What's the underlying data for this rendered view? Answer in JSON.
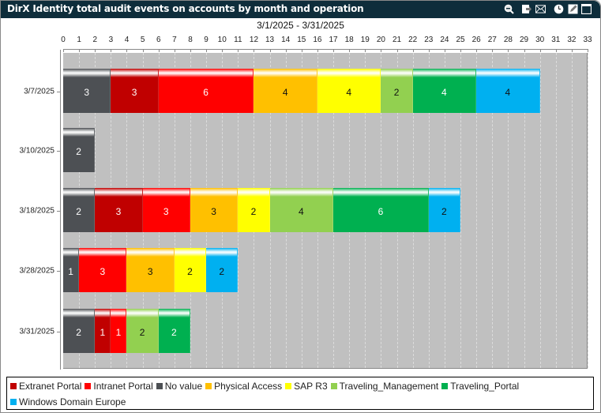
{
  "window": {
    "title": "DirX Identity total audit events on accounts by month and operation",
    "toolbar_icons": [
      "zoom-out-icon",
      "export-icon",
      "email-icon",
      "clock-icon",
      "edit-icon",
      "maximize-icon"
    ]
  },
  "chart_data": {
    "type": "bar",
    "orientation": "horizontal",
    "stacked": true,
    "title": "DirX Identity total audit events on accounts by month and operation",
    "subtitle": "3/1/2025 - 3/31/2025",
    "xlabel": "",
    "ylabel": "",
    "xlim": [
      0,
      33
    ],
    "x_ticks": [
      0,
      1,
      2,
      3,
      4,
      5,
      6,
      7,
      8,
      9,
      10,
      11,
      12,
      13,
      14,
      15,
      16,
      17,
      18,
      19,
      20,
      21,
      22,
      23,
      24,
      25,
      26,
      27,
      28,
      29,
      30,
      31,
      32,
      33
    ],
    "grid": true,
    "legend_position": "bottom",
    "categories": [
      "3/7/2025",
      "3/10/2025",
      "3/18/2025",
      "3/28/2025",
      "3/31/2025"
    ],
    "series": [
      {
        "name": "No value",
        "color": "#4d5054",
        "values": [
          3,
          2,
          2,
          1,
          2
        ]
      },
      {
        "name": "Extranet Portal",
        "color": "#c00000",
        "values": [
          3,
          0,
          3,
          0,
          1
        ]
      },
      {
        "name": "Intranet Portal",
        "color": "#ff0000",
        "values": [
          6,
          0,
          3,
          3,
          1
        ]
      },
      {
        "name": "Physical Access",
        "color": "#ffc000",
        "values": [
          4,
          0,
          3,
          3,
          0
        ]
      },
      {
        "name": "SAP R3",
        "color": "#ffff00",
        "values": [
          4,
          0,
          2,
          2,
          0
        ]
      },
      {
        "name": "Traveling_Management",
        "color": "#92d050",
        "values": [
          2,
          0,
          4,
          0,
          2
        ]
      },
      {
        "name": "Traveling_Portal",
        "color": "#00b050",
        "values": [
          4,
          0,
          6,
          0,
          2
        ]
      },
      {
        "name": "Windows Domain Europe",
        "color": "#00b0f0",
        "values": [
          4,
          0,
          2,
          2,
          0
        ]
      }
    ],
    "rows": [
      {
        "label": "3/7/2025",
        "segments": [
          {
            "series": "No value",
            "value": 3,
            "color": "#4d5054",
            "text_color": "#ffffff"
          },
          {
            "series": "Extranet Portal",
            "value": 3,
            "color": "#c00000",
            "text_color": "#ffffff"
          },
          {
            "series": "Intranet Portal",
            "value": 6,
            "color": "#ff0000",
            "text_color": "#ffffff"
          },
          {
            "series": "Physical Access",
            "value": 4,
            "color": "#ffc000",
            "text_color": "#111111"
          },
          {
            "series": "SAP R3",
            "value": 4,
            "color": "#ffff00",
            "text_color": "#111111"
          },
          {
            "series": "Traveling_Management",
            "value": 2,
            "color": "#92d050",
            "text_color": "#111111"
          },
          {
            "series": "Traveling_Portal",
            "value": 4,
            "color": "#00b050",
            "text_color": "#ffffff"
          },
          {
            "series": "Windows Domain Europe",
            "value": 4,
            "color": "#00b0f0",
            "text_color": "#111111"
          }
        ]
      },
      {
        "label": "3/10/2025",
        "segments": [
          {
            "series": "No value",
            "value": 2,
            "color": "#4d5054",
            "text_color": "#ffffff"
          }
        ]
      },
      {
        "label": "3/18/2025",
        "segments": [
          {
            "series": "No value",
            "value": 2,
            "color": "#4d5054",
            "text_color": "#ffffff"
          },
          {
            "series": "Extranet Portal",
            "value": 3,
            "color": "#c00000",
            "text_color": "#ffffff"
          },
          {
            "series": "Intranet Portal",
            "value": 3,
            "color": "#ff0000",
            "text_color": "#ffffff"
          },
          {
            "series": "Physical Access",
            "value": 3,
            "color": "#ffc000",
            "text_color": "#111111"
          },
          {
            "series": "SAP R3",
            "value": 2,
            "color": "#ffff00",
            "text_color": "#111111"
          },
          {
            "series": "Traveling_Management",
            "value": 4,
            "color": "#92d050",
            "text_color": "#111111"
          },
          {
            "series": "Traveling_Portal",
            "value": 6,
            "color": "#00b050",
            "text_color": "#ffffff"
          },
          {
            "series": "Windows Domain Europe",
            "value": 2,
            "color": "#00b0f0",
            "text_color": "#111111"
          }
        ]
      },
      {
        "label": "3/28/2025",
        "segments": [
          {
            "series": "No value",
            "value": 1,
            "color": "#4d5054",
            "text_color": "#ffffff"
          },
          {
            "series": "Intranet Portal",
            "value": 3,
            "color": "#ff0000",
            "text_color": "#ffffff"
          },
          {
            "series": "Physical Access",
            "value": 3,
            "color": "#ffc000",
            "text_color": "#111111"
          },
          {
            "series": "SAP R3",
            "value": 2,
            "color": "#ffff00",
            "text_color": "#111111"
          },
          {
            "series": "Windows Domain Europe",
            "value": 2,
            "color": "#00b0f0",
            "text_color": "#111111"
          }
        ]
      },
      {
        "label": "3/31/2025",
        "segments": [
          {
            "series": "No value",
            "value": 2,
            "color": "#4d5054",
            "text_color": "#ffffff"
          },
          {
            "series": "Extranet Portal",
            "value": 1,
            "color": "#c00000",
            "text_color": "#ffffff"
          },
          {
            "series": "Intranet Portal",
            "value": 1,
            "color": "#ff0000",
            "text_color": "#ffffff"
          },
          {
            "series": "Traveling_Management",
            "value": 2,
            "color": "#92d050",
            "text_color": "#111111"
          },
          {
            "series": "Traveling_Portal",
            "value": 2,
            "color": "#00b050",
            "text_color": "#ffffff"
          }
        ]
      }
    ]
  },
  "legend": {
    "rows": [
      [
        {
          "label": "Extranet Portal",
          "color": "#c00000"
        },
        {
          "label": "Intranet Portal",
          "color": "#ff0000"
        },
        {
          "label": "No value",
          "color": "#4d5054"
        },
        {
          "label": "Physical Access",
          "color": "#ffc000"
        },
        {
          "label": "SAP R3",
          "color": "#ffff00"
        },
        {
          "label": "Traveling_Management",
          "color": "#92d050"
        },
        {
          "label": "Traveling_Portal",
          "color": "#00b050"
        }
      ],
      [
        {
          "label": "Windows Domain Europe",
          "color": "#00b0f0"
        }
      ]
    ]
  }
}
